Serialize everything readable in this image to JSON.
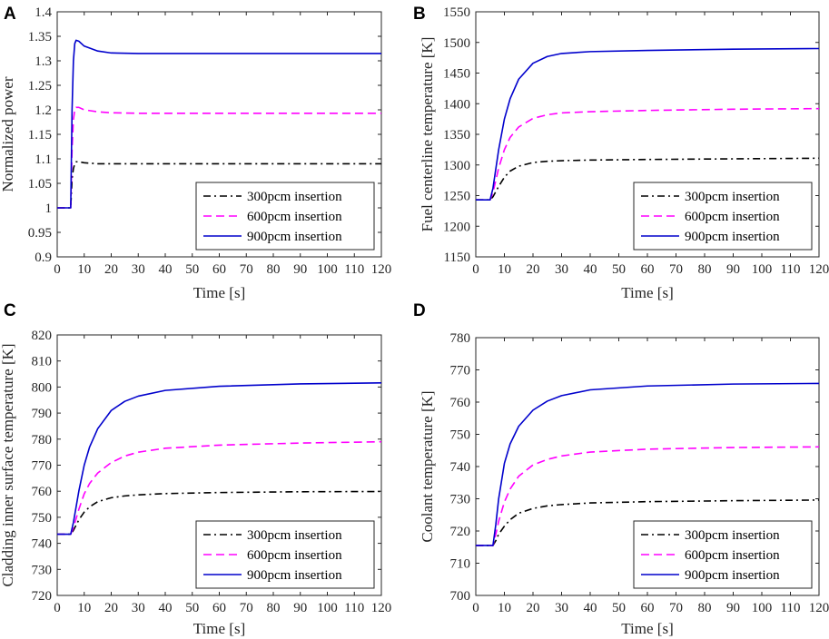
{
  "figure": {
    "background": "#ffffff",
    "axis_color": "#262626"
  },
  "series_styles": [
    {
      "name": "300pcm insertion",
      "color": "#000000",
      "dash": "dashdot"
    },
    {
      "name": "600pcm insertion",
      "color": "#ff00ff",
      "dash": "dashed"
    },
    {
      "name": "900pcm insertion",
      "color": "#0000cc",
      "dash": "solid"
    }
  ],
  "chart_data": [
    {
      "panel": "A",
      "type": "line",
      "xlabel": "Time [s]",
      "ylabel": "Normalized power",
      "xlim": [
        0,
        120
      ],
      "ylim": [
        0.9,
        1.4
      ],
      "xticks": [
        0,
        10,
        20,
        30,
        40,
        50,
        60,
        70,
        80,
        90,
        100,
        110,
        120
      ],
      "xtick_labels": [
        "0",
        "10",
        "20",
        "30",
        "40",
        "50",
        "60",
        "70",
        "80",
        "90",
        "100",
        "110",
        "120"
      ],
      "yticks": [
        0.9,
        0.95,
        1.0,
        1.05,
        1.1,
        1.15,
        1.2,
        1.25,
        1.3,
        1.35,
        1.4
      ],
      "ytick_labels": [
        "0.9",
        "0.95",
        "1",
        "1.05",
        "1.1",
        "1.15",
        "1.2",
        "1.25",
        "1.3",
        "1.35",
        "1.4"
      ],
      "legend_loc": "bottom-right",
      "series": [
        {
          "name": "300pcm insertion",
          "x": [
            0,
            5,
            5.5,
            6,
            6.5,
            7,
            8,
            10,
            15,
            20,
            30,
            60,
            90,
            120
          ],
          "y": [
            1.0,
            1.0,
            1.06,
            1.08,
            1.09,
            1.094,
            1.094,
            1.092,
            1.09,
            1.09,
            1.09,
            1.09,
            1.09,
            1.09
          ]
        },
        {
          "name": "600pcm insertion",
          "x": [
            0,
            5,
            5.5,
            6,
            6.5,
            7,
            8,
            10,
            15,
            20,
            30,
            60,
            90,
            120
          ],
          "y": [
            1.0,
            1.0,
            1.12,
            1.18,
            1.2,
            1.205,
            1.205,
            1.2,
            1.196,
            1.194,
            1.193,
            1.193,
            1.193,
            1.193
          ]
        },
        {
          "name": "900pcm insertion",
          "x": [
            0,
            5,
            5.5,
            6,
            6.5,
            7,
            8,
            10,
            15,
            20,
            30,
            60,
            90,
            120
          ],
          "y": [
            1.0,
            1.0,
            1.2,
            1.3,
            1.335,
            1.342,
            1.34,
            1.33,
            1.32,
            1.316,
            1.315,
            1.315,
            1.315,
            1.315
          ]
        }
      ]
    },
    {
      "panel": "B",
      "type": "line",
      "xlabel": "Time [s]",
      "ylabel": "Fuel centerline temperature [K]",
      "xlim": [
        0,
        120
      ],
      "ylim": [
        1150,
        1550
      ],
      "xticks": [
        0,
        10,
        20,
        30,
        40,
        50,
        60,
        70,
        80,
        90,
        100,
        110,
        120
      ],
      "xtick_labels": [
        "0",
        "10",
        "20",
        "30",
        "40",
        "50",
        "60",
        "70",
        "80",
        "90",
        "100",
        "110",
        "120"
      ],
      "yticks": [
        1150,
        1200,
        1250,
        1300,
        1350,
        1400,
        1450,
        1500,
        1550
      ],
      "ytick_labels": [
        "1150",
        "1200",
        "1250",
        "1300",
        "1350",
        "1400",
        "1450",
        "1500",
        "1550"
      ],
      "legend_loc": "bottom-right",
      "series": [
        {
          "name": "300pcm insertion",
          "x": [
            0,
            5,
            6,
            8,
            10,
            12,
            15,
            20,
            25,
            30,
            40,
            60,
            90,
            120
          ],
          "y": [
            1243,
            1243,
            1248,
            1265,
            1280,
            1290,
            1298,
            1304,
            1306,
            1307,
            1308,
            1309,
            1310,
            1311
          ]
        },
        {
          "name": "600pcm insertion",
          "x": [
            0,
            5,
            6,
            8,
            10,
            12,
            15,
            20,
            25,
            30,
            40,
            60,
            90,
            120
          ],
          "y": [
            1243,
            1243,
            1255,
            1295,
            1325,
            1345,
            1362,
            1376,
            1382,
            1385,
            1387,
            1389,
            1391,
            1392
          ]
        },
        {
          "name": "900pcm insertion",
          "x": [
            0,
            5,
            6,
            8,
            10,
            12,
            15,
            20,
            25,
            30,
            40,
            60,
            90,
            120
          ],
          "y": [
            1243,
            1243,
            1262,
            1325,
            1375,
            1408,
            1440,
            1466,
            1477,
            1482,
            1485,
            1487,
            1489,
            1490
          ]
        }
      ]
    },
    {
      "panel": "C",
      "type": "line",
      "xlabel": "Time [s]",
      "ylabel": "Cladding inner surface temperature [K]",
      "xlim": [
        0,
        120
      ],
      "ylim": [
        720,
        820
      ],
      "xticks": [
        0,
        10,
        20,
        30,
        40,
        50,
        60,
        70,
        80,
        90,
        100,
        110,
        120
      ],
      "xtick_labels": [
        "0",
        "10",
        "20",
        "30",
        "40",
        "50",
        "60",
        "70",
        "80",
        "90",
        "100",
        "110",
        "120"
      ],
      "yticks": [
        720,
        730,
        740,
        750,
        760,
        770,
        780,
        790,
        800,
        810,
        820
      ],
      "ytick_labels": [
        "720",
        "730",
        "740",
        "750",
        "760",
        "770",
        "780",
        "790",
        "800",
        "810",
        "820"
      ],
      "legend_loc": "bottom-right",
      "series": [
        {
          "name": "300pcm insertion",
          "x": [
            0,
            5,
            6,
            8,
            10,
            12,
            15,
            20,
            25,
            30,
            40,
            60,
            90,
            120
          ],
          "y": [
            743.5,
            743.5,
            745,
            749,
            752,
            754,
            756,
            757.5,
            758.2,
            758.6,
            759.1,
            759.5,
            759.8,
            759.9
          ]
        },
        {
          "name": "600pcm insertion",
          "x": [
            0,
            5,
            6,
            8,
            10,
            12,
            15,
            20,
            25,
            30,
            40,
            60,
            90,
            120
          ],
          "y": [
            743.5,
            743.5,
            746,
            753,
            759,
            763,
            767,
            771,
            773.5,
            775,
            776.5,
            777.7,
            778.5,
            779
          ]
        },
        {
          "name": "900pcm insertion",
          "x": [
            0,
            5,
            6,
            8,
            10,
            12,
            15,
            20,
            25,
            30,
            40,
            60,
            90,
            120
          ],
          "y": [
            743.5,
            743.5,
            748,
            760,
            770,
            777,
            784,
            791,
            794.5,
            796.5,
            798.7,
            800.3,
            801.2,
            801.6
          ]
        }
      ]
    },
    {
      "panel": "D",
      "type": "line",
      "xlabel": "Time [s]",
      "ylabel": "Coolant temperature [K]",
      "xlim": [
        0,
        120
      ],
      "ylim": [
        700,
        780
      ],
      "xticks": [
        0,
        10,
        20,
        30,
        40,
        50,
        60,
        70,
        80,
        90,
        100,
        110,
        120
      ],
      "xtick_labels": [
        "0",
        "10",
        "20",
        "30",
        "40",
        "50",
        "60",
        "70",
        "80",
        "90",
        "100",
        "110",
        "120"
      ],
      "yticks": [
        700,
        710,
        720,
        730,
        740,
        750,
        760,
        770,
        780
      ],
      "ytick_labels": [
        "700",
        "710",
        "720",
        "730",
        "740",
        "750",
        "760",
        "770",
        "780"
      ],
      "legend_loc": "bottom-right",
      "series": [
        {
          "name": "300pcm insertion",
          "x": [
            0,
            6,
            7,
            8,
            10,
            12,
            15,
            20,
            25,
            30,
            40,
            60,
            90,
            120
          ],
          "y": [
            715.5,
            715.5,
            717,
            719,
            721.5,
            723.5,
            725.5,
            727,
            727.8,
            728.2,
            728.7,
            729.1,
            729.4,
            729.6
          ]
        },
        {
          "name": "600pcm insertion",
          "x": [
            0,
            6,
            7,
            8,
            10,
            12,
            15,
            20,
            25,
            30,
            40,
            60,
            90,
            120
          ],
          "y": [
            715.5,
            715.5,
            719,
            723,
            729,
            733,
            737,
            740.5,
            742.2,
            743.3,
            744.5,
            745.4,
            745.9,
            746.1
          ]
        },
        {
          "name": "900pcm insertion",
          "x": [
            0,
            6,
            7,
            8,
            10,
            12,
            15,
            20,
            25,
            30,
            40,
            60,
            90,
            120
          ],
          "y": [
            715.5,
            715.5,
            722,
            730,
            741,
            747,
            752.5,
            757.5,
            760.3,
            762,
            763.8,
            765,
            765.6,
            765.8
          ]
        }
      ]
    }
  ]
}
